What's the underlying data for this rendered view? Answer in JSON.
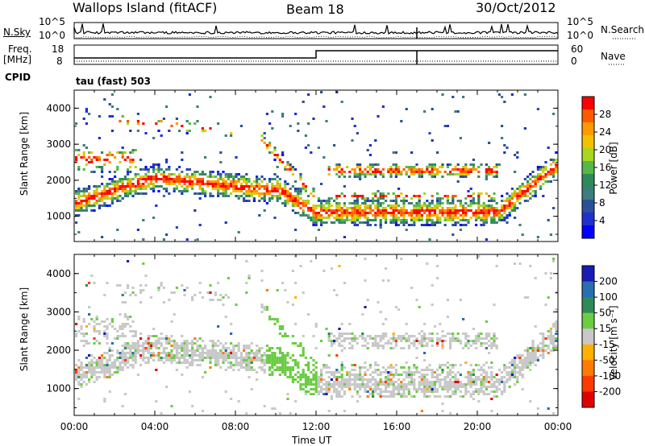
{
  "header": {
    "station": "Wallops Island (fitACF)",
    "beam": "Beam 18",
    "date": "30/Oct/2012"
  },
  "sky_panel": {
    "left_label": "N.Sky",
    "right_label": "N.Search",
    "left_ticks": [
      "10^5",
      "10^0"
    ],
    "right_ticks": [
      "10^5",
      "10^0"
    ]
  },
  "freq_panel": {
    "left_label_top": "Freq.",
    "left_label_bottom": "[MHz]",
    "left_ticks": [
      "18",
      "8"
    ],
    "right_label": "Nave",
    "right_ticks": [
      "60",
      "0"
    ],
    "cpid_label": "CPID",
    "cpid_value": "tau (fast) 503"
  },
  "chart_data": [
    {
      "type": "heatmap",
      "name": "power",
      "ylabel": "Slant Range [km]",
      "y_ticks": [
        "4000",
        "3000",
        "2000",
        "1000"
      ],
      "y_tick_values": [
        4000,
        3000,
        2000,
        1000
      ],
      "ylim": [
        300,
        4500
      ],
      "xlim": [
        0,
        24
      ],
      "colorbar": {
        "label": "Power [dB]",
        "ticks": [
          "28",
          "24",
          "20",
          "16",
          "12",
          "8",
          "4"
        ],
        "colors": [
          "#ff0000",
          "#ff5a00",
          "#ff9900",
          "#f2c200",
          "#a9d61f",
          "#56b847",
          "#2e8b57",
          "#3c7d7d",
          "#2b4f9a",
          "#1f2fd0",
          "#0000ff"
        ]
      }
    },
    {
      "type": "heatmap",
      "name": "velocity",
      "ylabel": "Slant Range [km]",
      "y_ticks": [
        "4000",
        "3000",
        "2000",
        "1000"
      ],
      "y_tick_values": [
        4000,
        3000,
        2000,
        1000
      ],
      "ylim": [
        300,
        4500
      ],
      "xlim": [
        0,
        24
      ],
      "colorbar": {
        "label": "Velocity [m s⁻¹]",
        "ticks": [
          "200",
          "100",
          "50",
          "15",
          "-15",
          "-50",
          "-100",
          "-200"
        ],
        "colors": [
          "#1a1ab4",
          "#2a6db0",
          "#2e8b57",
          "#6ccc44",
          "#c8c8c8",
          "#ffb000",
          "#ff7a00",
          "#ff3a00",
          "#e00000"
        ]
      }
    }
  ],
  "time_axis": {
    "label": "Time UT",
    "ticks": [
      "00:00",
      "04:00",
      "08:00",
      "12:00",
      "16:00",
      "20:00",
      "00:00"
    ],
    "tick_hours": [
      0,
      4,
      8,
      12,
      16,
      20,
      24
    ]
  }
}
